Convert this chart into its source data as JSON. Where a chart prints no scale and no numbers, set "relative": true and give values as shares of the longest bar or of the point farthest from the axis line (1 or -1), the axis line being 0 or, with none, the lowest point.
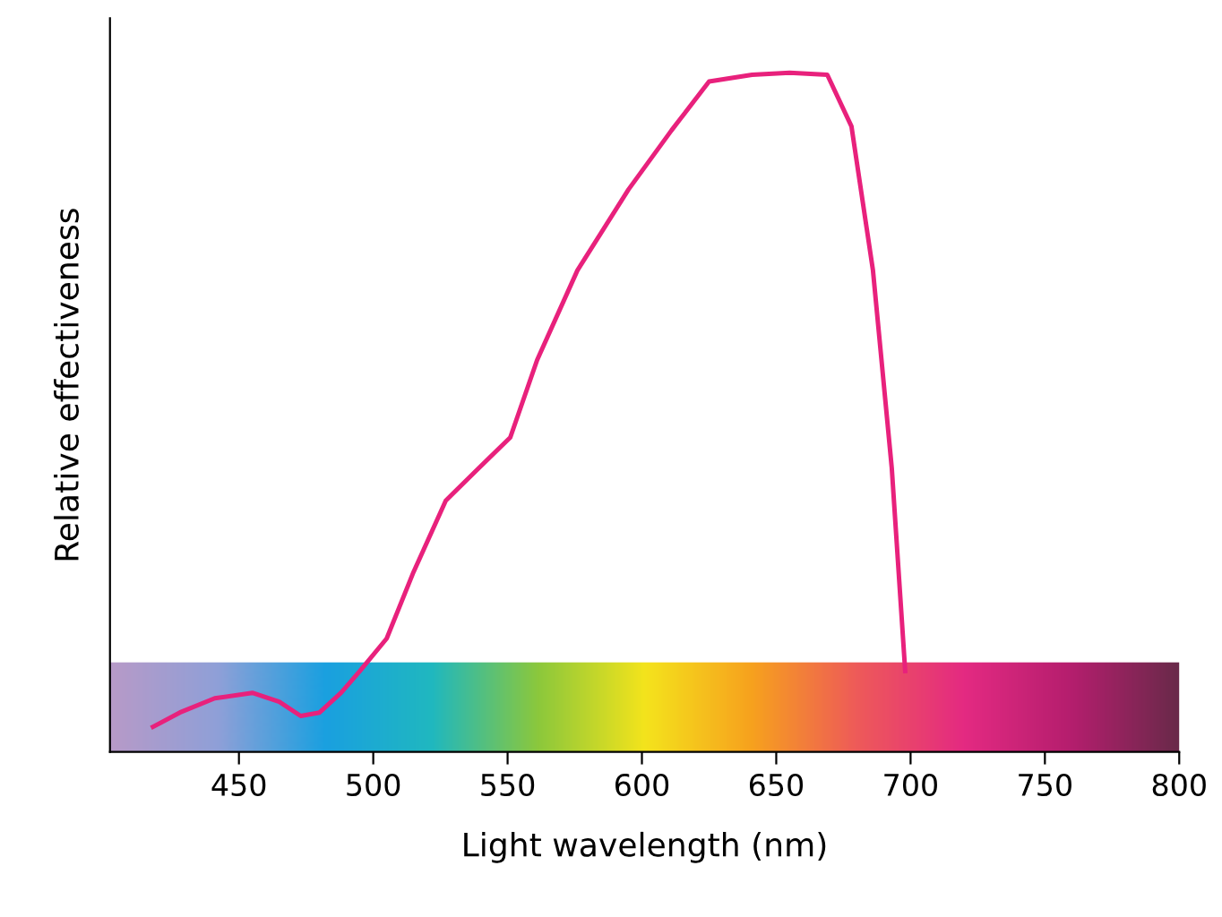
{
  "chart_data": {
    "type": "line",
    "relative": true,
    "xlabel": "Light wavelength (nm)",
    "ylabel": "Relative effectiveness",
    "xlim": [
      402,
      800
    ],
    "xticks": [
      450,
      500,
      550,
      600,
      650,
      700,
      750,
      800
    ],
    "grid": false,
    "legend": false,
    "marker": "none",
    "line_style": "solid",
    "series": [
      {
        "color": "#e8217c",
        "x": [
          418,
          428,
          441,
          455,
          465,
          473,
          480,
          488,
          495,
          505,
          515,
          527,
          538,
          551,
          561,
          576,
          595,
          611,
          625,
          641,
          655,
          669,
          678,
          686,
          693,
          698
        ],
        "values": [
          0.037,
          0.058,
          0.079,
          0.087,
          0.074,
          0.053,
          0.058,
          0.087,
          0.119,
          0.167,
          0.265,
          0.37,
          0.413,
          0.463,
          0.577,
          0.709,
          0.828,
          0.915,
          0.987,
          0.997,
          1.0,
          0.997,
          0.921,
          0.709,
          0.418,
          0.119
        ]
      }
    ]
  }
}
